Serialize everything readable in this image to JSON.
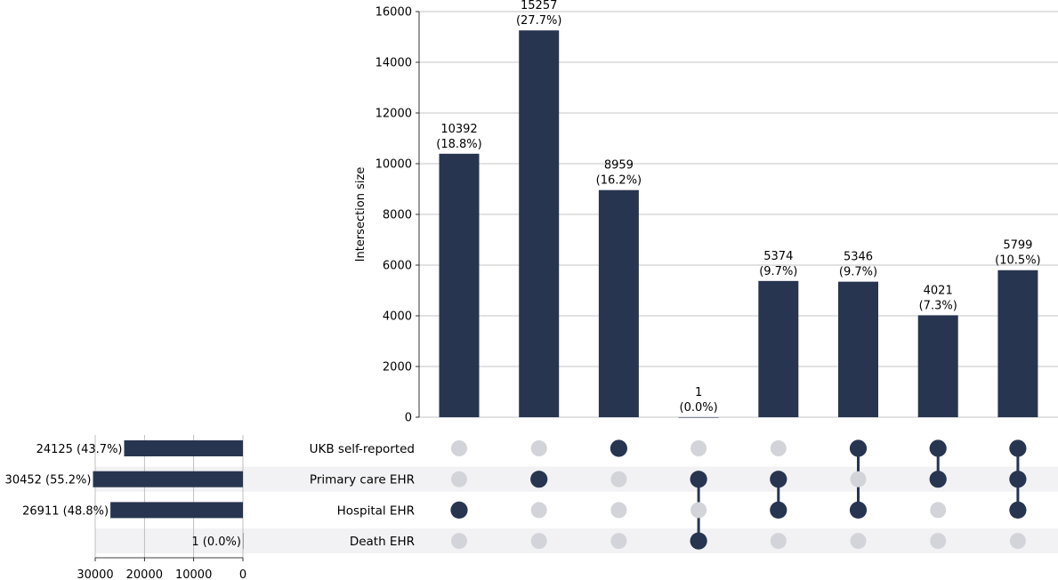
{
  "chart_data": {
    "type": "upset",
    "intersection_axis": {
      "ylabel": "Intersection size",
      "ylim": [
        0,
        16000
      ],
      "ticks": [
        0,
        2000,
        4000,
        6000,
        8000,
        10000,
        12000,
        14000,
        16000
      ],
      "grid": true
    },
    "set_size_axis": {
      "xlim_reversed": [
        30000,
        0
      ],
      "ticks": [
        30000,
        20000,
        10000,
        0
      ],
      "grid": true
    },
    "sets": [
      {
        "name": "UKB self-reported",
        "size": 24125,
        "label": "24125 (43.7%)"
      },
      {
        "name": "Primary care EHR",
        "size": 30452,
        "label": "30452 (55.2%)"
      },
      {
        "name": "Hospital EHR",
        "size": 26911,
        "label": "26911 (48.8%)"
      },
      {
        "name": "Death EHR",
        "size": 1,
        "label": "1 (0.0%)"
      }
    ],
    "intersections": [
      {
        "members": [
          2
        ],
        "value": 10392,
        "count_label": "10392",
        "pct_label": "(18.8%)"
      },
      {
        "members": [
          1
        ],
        "value": 15257,
        "count_label": "15257",
        "pct_label": "(27.7%)"
      },
      {
        "members": [
          0
        ],
        "value": 8959,
        "count_label": "8959",
        "pct_label": "(16.2%)"
      },
      {
        "members": [
          1,
          3
        ],
        "value": 1,
        "count_label": "1",
        "pct_label": "(0.0%)"
      },
      {
        "members": [
          1,
          2
        ],
        "value": 5374,
        "count_label": "5374",
        "pct_label": "(9.7%)"
      },
      {
        "members": [
          0,
          2
        ],
        "value": 5346,
        "count_label": "5346",
        "pct_label": "(9.7%)"
      },
      {
        "members": [
          0,
          1
        ],
        "value": 4021,
        "count_label": "4021",
        "pct_label": "(7.3%)"
      },
      {
        "members": [
          0,
          1,
          2
        ],
        "value": 5799,
        "count_label": "5799",
        "pct_label": "(10.5%)"
      }
    ],
    "colors": {
      "bar": "#283550",
      "dot_active": "#283550",
      "dot_inactive": "#d2d4d9",
      "row_stripe": "#f2f2f4",
      "grid": "#b0b0b0",
      "axis": "#000000"
    }
  }
}
